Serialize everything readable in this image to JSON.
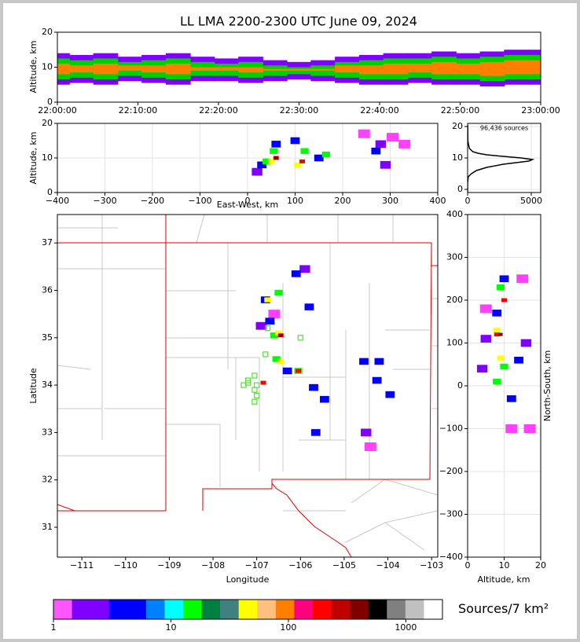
{
  "chart_data": [
    {
      "type": "range",
      "title": "LL LMA 2200-2300 UTC June 09, 2024",
      "ylabel": "Altitude, km",
      "x": [
        0,
        3,
        6,
        9,
        12,
        15,
        18,
        21,
        24,
        27,
        30,
        33,
        36,
        39,
        42,
        45,
        48,
        51,
        54,
        57,
        60
      ],
      "xlim": [
        0,
        60
      ],
      "xticks": [
        {
          "value": 0,
          "label": "22:00:00"
        },
        {
          "value": 10,
          "label": "22:10:00"
        },
        {
          "value": 20,
          "label": "22:20:00"
        },
        {
          "value": 30,
          "label": "22:30:00"
        },
        {
          "value": 40,
          "label": "22:40:00"
        },
        {
          "value": 50,
          "label": "22:50:00"
        },
        {
          "value": 60,
          "label": "23:00:00"
        }
      ],
      "ylim": [
        0,
        20
      ],
      "yticks": [
        0,
        10,
        20
      ],
      "grid": false,
      "series": [
        {
          "color": "#8000ff",
          "low": [
            5,
            5.5,
            5,
            6,
            5.5,
            5,
            6,
            6,
            5.5,
            6,
            6.5,
            6,
            5.5,
            5,
            5,
            5.5,
            5,
            5,
            4.5,
            5,
            5
          ],
          "high": [
            14,
            13.5,
            14,
            13,
            13.5,
            14,
            13,
            12.5,
            13,
            12,
            11.5,
            12,
            13,
            13.5,
            14,
            14,
            14.5,
            14,
            14.5,
            15,
            15
          ]
        },
        {
          "color": "#00d000",
          "low": [
            6.5,
            7,
            6.5,
            7.5,
            7,
            6.5,
            7.5,
            7.5,
            7,
            7.5,
            8,
            7.5,
            7,
            6.5,
            6.5,
            7,
            6.5,
            6.5,
            6,
            6.5,
            6.5
          ],
          "high": [
            12.5,
            12,
            12.5,
            11.5,
            12,
            12.5,
            11.5,
            11,
            11.5,
            10.5,
            10,
            10.5,
            11.5,
            12,
            12.5,
            12.5,
            13,
            12.5,
            13,
            13.5,
            13.5
          ]
        },
        {
          "color": "#ff8000",
          "low": [
            8,
            8.5,
            8,
            9,
            8.5,
            8,
            9,
            9,
            8.5,
            9,
            9,
            9,
            8.5,
            8,
            8,
            8.5,
            8,
            8,
            7.5,
            8,
            8
          ],
          "high": [
            11,
            10.5,
            11,
            10.5,
            10.5,
            11,
            10,
            10,
            10,
            9.5,
            9.5,
            9.5,
            10.5,
            10.5,
            11,
            11,
            11.5,
            11,
            11.5,
            12,
            12
          ]
        }
      ]
    },
    {
      "type": "scatter",
      "xlabel": "East-West, km",
      "ylabel": "Altitude, km",
      "xlim": [
        -400,
        400
      ],
      "xticks": [
        {
          "value": -400,
          "label": "−400"
        },
        {
          "value": -300,
          "label": "−300"
        },
        {
          "value": -200,
          "label": "−200"
        },
        {
          "value": -100,
          "label": "−100"
        },
        0,
        100,
        200,
        300,
        400
      ],
      "ylim": [
        0,
        20
      ],
      "yticks": [
        0,
        10,
        20
      ],
      "grid": true,
      "series": [
        {
          "color": "#ff40ff",
          "x": [
            245,
            305,
            330
          ],
          "y": [
            17,
            16,
            14
          ]
        },
        {
          "color": "#8000ff",
          "x": [
            280,
            290,
            20
          ],
          "y": [
            14,
            8,
            6
          ]
        },
        {
          "color": "#0000ff",
          "x": [
            30,
            60,
            150,
            270,
            100
          ],
          "y": [
            8,
            14,
            10,
            12,
            15
          ]
        },
        {
          "color": "#00ff00",
          "x": [
            55,
            120,
            165,
            40
          ],
          "y": [
            12,
            12,
            11,
            9
          ]
        },
        {
          "color": "#ffff00",
          "x": [
            50,
            105
          ],
          "y": [
            9,
            8
          ]
        },
        {
          "color": "#ff0000",
          "x": [
            60,
            115
          ],
          "y": [
            10,
            9
          ]
        },
        {
          "color": "#800000",
          "x": [
            60
          ],
          "y": [
            10
          ]
        }
      ]
    },
    {
      "type": "line",
      "annotation": "96,436 sources",
      "color": "#000000",
      "x": [
        0,
        0,
        0,
        50,
        300,
        700,
        1500,
        2800,
        3800,
        4800,
        5100,
        4200,
        2800,
        1500,
        800,
        400,
        150,
        80,
        40,
        20,
        10,
        5
      ],
      "y": [
        -1,
        0,
        2,
        4,
        5,
        6,
        7,
        8,
        8.5,
        9,
        9.5,
        10,
        10.5,
        11,
        11.5,
        12,
        13,
        14,
        15,
        16,
        18,
        20.5
      ],
      "xlim": [
        0,
        5740
      ],
      "xticks": [
        0,
        5000
      ],
      "ylim": [
        -1,
        21
      ],
      "yticks": [
        0,
        10,
        20
      ],
      "grid": true
    },
    {
      "type": "scatter",
      "xlabel": "Longitude",
      "ylabel": "Latitude",
      "xlim": [
        -111.56,
        -102.86
      ],
      "xticks": [
        {
          "value": -111,
          "label": "−111"
        },
        {
          "value": -110,
          "label": "−110"
        },
        {
          "value": -109,
          "label": "−109"
        },
        {
          "value": -108,
          "label": "−108"
        },
        {
          "value": -107,
          "label": "−107"
        },
        {
          "value": -106,
          "label": "−106"
        },
        {
          "value": -105,
          "label": "−105"
        },
        {
          "value": -104,
          "label": "−104"
        },
        {
          "value": -103,
          "label": "−103"
        }
      ],
      "ylim": [
        30.37,
        37.6
      ],
      "yticks": [
        31,
        32,
        33,
        34,
        35,
        36,
        37
      ],
      "grid": false,
      "series": [
        {
          "color": "#ff40ff",
          "x": [
            -104.4,
            -106.6
          ],
          "y": [
            32.7,
            35.5
          ]
        },
        {
          "color": "#8000ff",
          "x": [
            -104.5,
            -106.9,
            -105.9
          ],
          "y": [
            33.0,
            35.25,
            36.45
          ]
        },
        {
          "color": "#0000ff",
          "x": [
            -106.1,
            -106.8,
            -105.8,
            -105.7,
            -105.45,
            -104.55,
            -104.2,
            -104.25,
            -103.95,
            -105.65,
            -106.7,
            -106.3
          ],
          "y": [
            36.35,
            35.8,
            35.65,
            33.95,
            33.7,
            34.5,
            34.5,
            34.1,
            33.8,
            33.0,
            35.35,
            34.3
          ]
        },
        {
          "color": "#00ff00",
          "x": [
            -106.5,
            -106.6,
            -106.55,
            -106.05
          ],
          "y": [
            35.95,
            35.05,
            34.55,
            34.3
          ]
        },
        {
          "color": "#ffff00",
          "x": [
            -106.75,
            -106.5,
            -106.45
          ],
          "y": [
            35.8,
            35.1,
            34.5
          ]
        },
        {
          "color": "#ff0000",
          "x": [
            -106.05,
            -106.85,
            -106.45
          ],
          "y": [
            34.3,
            34.05,
            35.05
          ]
        },
        {
          "color": "#800000",
          "x": [
            -106.45
          ],
          "y": [
            35.05
          ]
        },
        {
          "color": "#55dd33",
          "marker": "square-open",
          "x": [
            -107.3,
            -107.2,
            -107.05,
            -107.0,
            -107.05,
            -107.0,
            -107.05,
            -107.2,
            -106.8,
            -106.75,
            -106.0
          ],
          "y": [
            34.0,
            34.05,
            34.2,
            34.0,
            33.9,
            33.78,
            33.65,
            34.1,
            34.65,
            35.2,
            35.0
          ]
        }
      ]
    },
    {
      "type": "scatter",
      "xlabel": "Altitude, km",
      "ylabel": "North-South, km",
      "xlim": [
        0,
        20
      ],
      "xticks": [
        0,
        10,
        20
      ],
      "ylim": [
        -400,
        400
      ],
      "yticks": [
        {
          "value": -400,
          "label": "−400"
        },
        {
          "value": -300,
          "label": "−300"
        },
        {
          "value": -200,
          "label": "−200"
        },
        {
          "value": -100,
          "label": "−100"
        },
        0,
        100,
        200,
        300,
        400
      ],
      "grid": true,
      "series": [
        {
          "color": "#ff40ff",
          "x": [
            15,
            12,
            5,
            17
          ],
          "y": [
            250,
            -100,
            180,
            -100
          ]
        },
        {
          "color": "#8000ff",
          "x": [
            5,
            16,
            4
          ],
          "y": [
            110,
            100,
            40
          ]
        },
        {
          "color": "#0000ff",
          "x": [
            10,
            12,
            8,
            14
          ],
          "y": [
            250,
            -30,
            170,
            60
          ]
        },
        {
          "color": "#00ff00",
          "x": [
            9,
            10,
            8
          ],
          "y": [
            230,
            45,
            10
          ]
        },
        {
          "color": "#ffff00",
          "x": [
            9,
            8
          ],
          "y": [
            65,
            130
          ]
        },
        {
          "color": "#ff0000",
          "x": [
            10,
            8
          ],
          "y": [
            200,
            120
          ]
        },
        {
          "color": "#800000",
          "x": [
            9
          ],
          "y": [
            120
          ]
        }
      ]
    },
    {
      "type": "colorbar",
      "label": "Sources/7 km²",
      "log": true,
      "xlim": [
        1,
        2050
      ],
      "xticks": [
        1,
        10,
        100,
        1000
      ],
      "colors": [
        "#ff55ff",
        "#8000ff",
        "#8000ff",
        "#0000ff",
        "#0000ff",
        "#0080ff",
        "#00ffff",
        "#00ff00",
        "#008040",
        "#408080",
        "#ffff00",
        "#ffc080",
        "#ff8000",
        "#ff0080",
        "#ff0000",
        "#c00000",
        "#800000",
        "#000000",
        "#808080",
        "#c0c0c0",
        "#ffffff"
      ]
    }
  ]
}
